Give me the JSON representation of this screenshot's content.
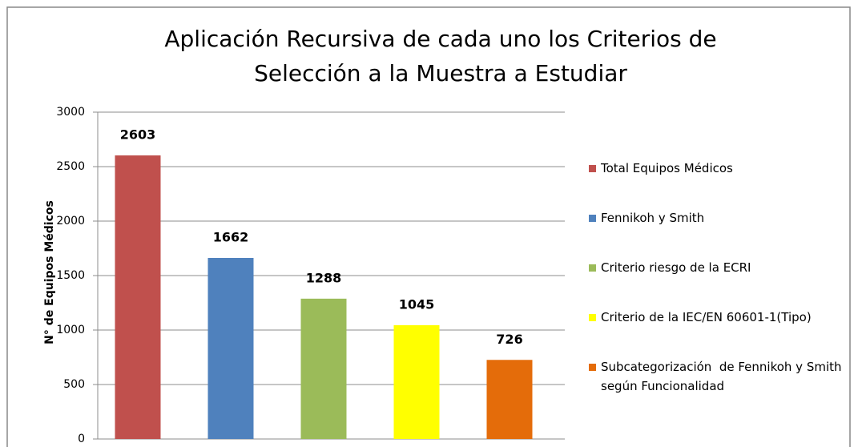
{
  "chart_data": {
    "type": "bar",
    "title": "Aplicación Recursiva de cada uno los Criterios de Selección a la Muestra a Estudiar",
    "y_label": "N° de Equipos Médicos",
    "categories": [
      null
    ],
    "series": [
      {
        "name": "Total Equipos Médicos",
        "color": "#c0504d",
        "values": [
          2603
        ]
      },
      {
        "name": "Fennikoh y Smith",
        "color": "#4f81bd",
        "values": [
          1662
        ]
      },
      {
        "name": "Criterio riesgo de la ECRI",
        "color": "#9bbb59",
        "values": [
          1288
        ]
      },
      {
        "name": "Criterio de la IEC/EN 60601-1(Tipo)",
        "color": "#ffff00",
        "values": [
          1045
        ]
      },
      {
        "name": "Subcategorización  de Fennikoh y Smith según Funcionalidad",
        "color": "#e46c0a",
        "values": [
          726
        ]
      }
    ],
    "ylim": [
      0,
      3000
    ],
    "yticks": [
      0,
      500,
      1000,
      1500,
      2000,
      2500,
      3000
    ],
    "grid": true,
    "legend": "right"
  }
}
